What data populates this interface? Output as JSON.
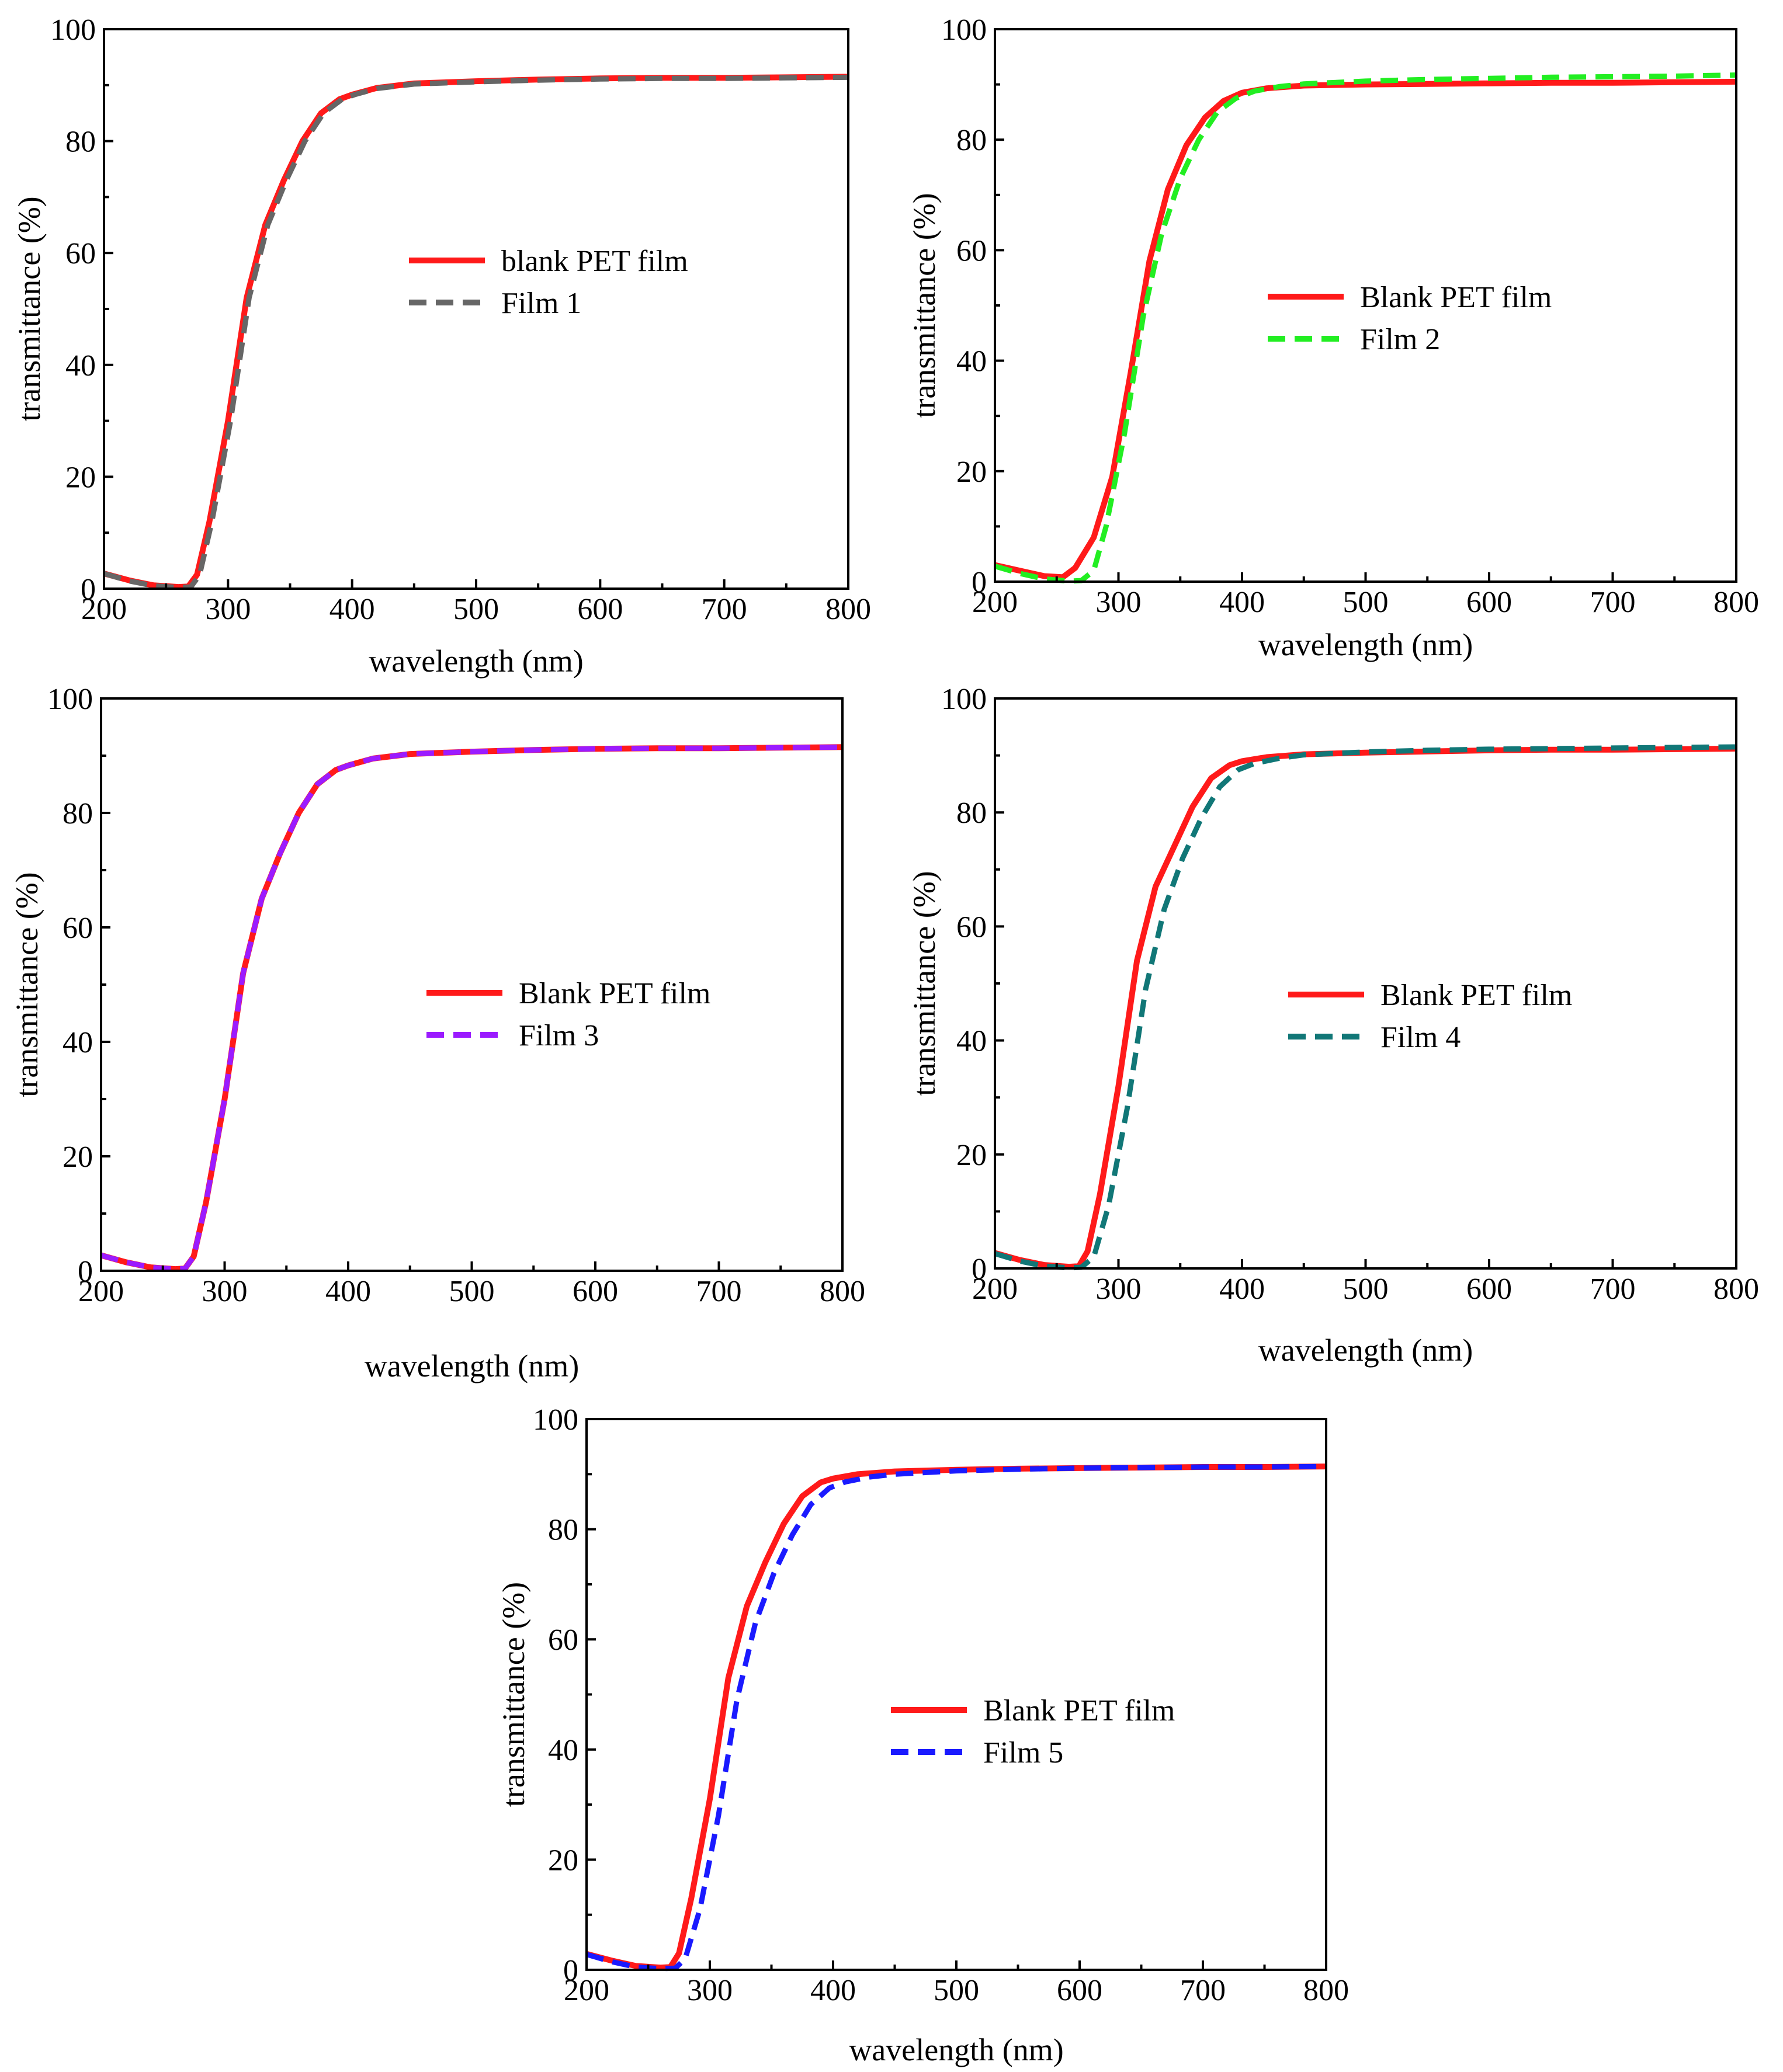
{
  "chart_data": [
    {
      "type": "line",
      "xlabel": "wavelength (nm)",
      "ylabel": "transmittance (%)",
      "xlim": [
        200,
        800
      ],
      "ylim": [
        0,
        100
      ],
      "xticks": [
        200,
        300,
        400,
        500,
        600,
        700,
        800
      ],
      "yticks": [
        0,
        20,
        40,
        60,
        80,
        100
      ],
      "legend_position": "center",
      "series": [
        {
          "name": "blank PET film",
          "color": "#ff1a1a",
          "dash": "solid",
          "x": [
            200,
            220,
            240,
            260,
            268,
            275,
            285,
            300,
            315,
            330,
            345,
            360,
            375,
            390,
            400,
            420,
            450,
            500,
            550,
            600,
            650,
            700,
            750,
            800
          ],
          "y": [
            2.7,
            1.5,
            0.6,
            0.3,
            0.4,
            2.5,
            12,
            30,
            52,
            65,
            73,
            80,
            85,
            87.5,
            88.3,
            89.5,
            90.3,
            90.7,
            91.0,
            91.2,
            91.3,
            91.3,
            91.4,
            91.5
          ]
        },
        {
          "name": "Film 1",
          "color": "#666666",
          "dash": "dashed",
          "x": [
            200,
            220,
            240,
            260,
            270,
            277,
            287,
            302,
            317,
            332,
            347,
            362,
            377,
            392,
            402,
            420,
            450,
            500,
            550,
            600,
            650,
            700,
            750,
            800
          ],
          "y": [
            2.7,
            1.4,
            0.5,
            0.2,
            0.3,
            2.4,
            12,
            30,
            52,
            65,
            73,
            80,
            85,
            87.5,
            88.3,
            89.4,
            90.2,
            90.6,
            90.9,
            91.1,
            91.2,
            91.2,
            91.3,
            91.4
          ]
        }
      ]
    },
    {
      "type": "line",
      "xlabel": "wavelength (nm)",
      "ylabel": "transmittance (%)",
      "xlim": [
        200,
        800
      ],
      "ylim": [
        0,
        100
      ],
      "xticks": [
        200,
        300,
        400,
        500,
        600,
        700,
        800
      ],
      "yticks": [
        0,
        20,
        40,
        60,
        80,
        100
      ],
      "legend_position": "center-right",
      "series": [
        {
          "name": "Blank PET film",
          "color": "#ff1a1a",
          "dash": "solid",
          "x": [
            200,
            220,
            240,
            255,
            265,
            280,
            295,
            310,
            325,
            340,
            355,
            370,
            385,
            400,
            420,
            450,
            500,
            550,
            600,
            650,
            700,
            750,
            800
          ],
          "y": [
            3.0,
            2.0,
            1.0,
            0.8,
            2.5,
            8,
            19,
            38,
            58,
            71,
            79,
            84,
            87,
            88.5,
            89.3,
            89.8,
            90.0,
            90.1,
            90.2,
            90.3,
            90.3,
            90.4,
            90.5
          ]
        },
        {
          "name": "Film 2",
          "color": "#22ee22",
          "dash": "dashed",
          "x": [
            200,
            220,
            240,
            260,
            270,
            280,
            290,
            305,
            320,
            335,
            350,
            365,
            380,
            395,
            410,
            430,
            450,
            500,
            550,
            600,
            650,
            700,
            750,
            800
          ],
          "y": [
            2.8,
            1.5,
            0.5,
            0.1,
            0.2,
            2,
            10,
            27,
            48,
            63,
            73,
            80,
            85,
            87.5,
            88.8,
            89.6,
            90.1,
            90.6,
            90.9,
            91.1,
            91.3,
            91.4,
            91.5,
            91.7
          ]
        }
      ]
    },
    {
      "type": "line",
      "xlabel": "wavelength (nm)",
      "ylabel": "transmittance (%)",
      "xlim": [
        200,
        800
      ],
      "ylim": [
        0,
        100
      ],
      "xticks": [
        200,
        300,
        400,
        500,
        600,
        700,
        800
      ],
      "yticks": [
        0,
        20,
        40,
        60,
        80,
        100
      ],
      "legend_position": "center",
      "series": [
        {
          "name": "Blank PET film",
          "color": "#ff1a1a",
          "dash": "solid",
          "x": [
            200,
            220,
            240,
            260,
            268,
            275,
            285,
            300,
            315,
            330,
            345,
            360,
            375,
            390,
            400,
            420,
            450,
            500,
            550,
            600,
            650,
            700,
            750,
            800
          ],
          "y": [
            2.7,
            1.5,
            0.6,
            0.3,
            0.4,
            2.5,
            12,
            30,
            52,
            65,
            73,
            80,
            85,
            87.5,
            88.3,
            89.5,
            90.3,
            90.7,
            91.0,
            91.2,
            91.3,
            91.3,
            91.4,
            91.5
          ]
        },
        {
          "name": "Film 3",
          "color": "#9b1bff",
          "dash": "dashed",
          "x": [
            200,
            220,
            240,
            260,
            268,
            275,
            285,
            300,
            315,
            330,
            345,
            360,
            375,
            390,
            400,
            420,
            450,
            500,
            550,
            600,
            650,
            700,
            750,
            800
          ],
          "y": [
            2.7,
            1.5,
            0.6,
            0.3,
            0.4,
            2.5,
            12,
            30,
            52,
            65,
            73,
            80,
            85,
            87.5,
            88.3,
            89.5,
            90.3,
            90.7,
            91.0,
            91.2,
            91.3,
            91.3,
            91.4,
            91.5
          ]
        }
      ]
    },
    {
      "type": "line",
      "xlabel": "wavelength (nm)",
      "ylabel": "transmittance (%)",
      "xlim": [
        200,
        800
      ],
      "ylim": [
        0,
        100
      ],
      "xticks": [
        200,
        300,
        400,
        500,
        600,
        700,
        800
      ],
      "yticks": [
        0,
        20,
        40,
        60,
        80,
        100
      ],
      "legend_position": "center-right",
      "series": [
        {
          "name": "Blank PET film",
          "color": "#ff1a1a",
          "dash": "solid",
          "x": [
            200,
            220,
            240,
            260,
            268,
            275,
            285,
            300,
            315,
            330,
            345,
            360,
            375,
            390,
            400,
            420,
            450,
            500,
            550,
            600,
            650,
            700,
            750,
            800
          ],
          "y": [
            2.7,
            1.5,
            0.6,
            0.3,
            0.4,
            3,
            13,
            32,
            54,
            67,
            74,
            81,
            86,
            88.3,
            89.0,
            89.7,
            90.2,
            90.5,
            90.7,
            90.9,
            91.0,
            91.0,
            91.1,
            91.2
          ]
        },
        {
          "name": "Film 4",
          "color": "#117777",
          "dash": "dashed",
          "x": [
            200,
            220,
            240,
            260,
            270,
            280,
            292,
            307,
            322,
            337,
            352,
            367,
            382,
            397,
            410,
            430,
            450,
            500,
            550,
            600,
            650,
            700,
            750,
            800
          ],
          "y": [
            2.6,
            1.3,
            0.4,
            0.1,
            0.2,
            2,
            11,
            28,
            49,
            63,
            72,
            79,
            84.5,
            87.5,
            88.6,
            89.5,
            90.1,
            90.6,
            90.9,
            91.1,
            91.2,
            91.3,
            91.4,
            91.5
          ]
        }
      ]
    },
    {
      "type": "line",
      "xlabel": "wavelength (nm)",
      "ylabel": "transmittance (%)",
      "xlim": [
        200,
        800
      ],
      "ylim": [
        0,
        100
      ],
      "xticks": [
        200,
        300,
        400,
        500,
        600,
        700,
        800
      ],
      "yticks": [
        0,
        20,
        40,
        60,
        80,
        100
      ],
      "legend_position": "center-right",
      "series": [
        {
          "name": "Blank PET film",
          "color": "#ff1a1a",
          "dash": "solid",
          "x": [
            200,
            220,
            240,
            260,
            268,
            275,
            285,
            300,
            315,
            330,
            345,
            360,
            375,
            390,
            400,
            420,
            450,
            500,
            550,
            600,
            650,
            700,
            750,
            800
          ],
          "y": [
            2.9,
            1.7,
            0.7,
            0.4,
            0.5,
            3,
            13,
            31,
            53,
            66,
            74,
            81,
            86,
            88.5,
            89.2,
            90.0,
            90.5,
            90.8,
            91.0,
            91.1,
            91.2,
            91.3,
            91.3,
            91.4
          ]
        },
        {
          "name": "Film 5",
          "color": "#1a1aff",
          "dash": "dashed",
          "x": [
            200,
            220,
            240,
            260,
            272,
            280,
            292,
            307,
            322,
            337,
            352,
            367,
            382,
            397,
            410,
            430,
            450,
            500,
            550,
            600,
            650,
            700,
            750,
            800
          ],
          "y": [
            2.8,
            1.5,
            0.5,
            0.2,
            0.3,
            2,
            11,
            28,
            49,
            63,
            72,
            79,
            84.5,
            87.5,
            88.6,
            89.5,
            90.0,
            90.6,
            90.9,
            91.1,
            91.2,
            91.3,
            91.3,
            91.4
          ]
        }
      ]
    }
  ]
}
